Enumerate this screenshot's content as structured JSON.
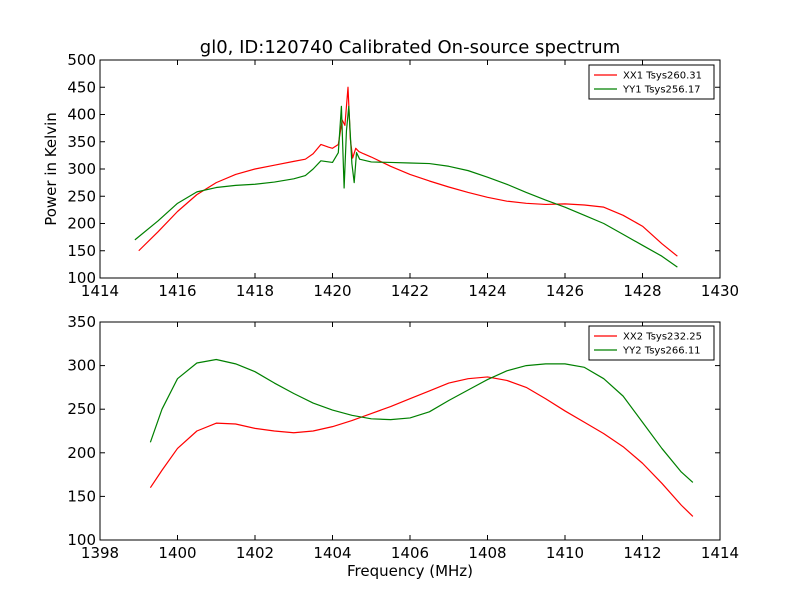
{
  "chart_data": [
    {
      "type": "line",
      "title": "gl0, ID:120740 Calibrated On-source spectrum",
      "xlabel": "",
      "ylabel": "Power in Kelvin",
      "xlim": [
        1414,
        1430
      ],
      "ylim": [
        100,
        500
      ],
      "xticks": [
        "1414",
        "1416",
        "1418",
        "1420",
        "1422",
        "1424",
        "1426",
        "1428",
        "1430"
      ],
      "yticks": [
        "100",
        "150",
        "200",
        "250",
        "300",
        "350",
        "400",
        "450",
        "500"
      ],
      "legend_position": "top-right",
      "grid": false,
      "series": [
        {
          "name": "XX1 Tsys260.31",
          "color": "#ff0000",
          "x": [
            1415.0,
            1415.5,
            1416.0,
            1416.5,
            1417.0,
            1417.5,
            1418.0,
            1418.5,
            1419.0,
            1419.3,
            1419.5,
            1419.7,
            1419.9,
            1420.0,
            1420.15,
            1420.25,
            1420.32,
            1420.4,
            1420.46,
            1420.52,
            1420.6,
            1420.68,
            1420.8,
            1421.0,
            1421.5,
            1422.0,
            1422.5,
            1423.0,
            1423.5,
            1424.0,
            1424.5,
            1425.0,
            1425.5,
            1426.0,
            1426.5,
            1427.0,
            1427.5,
            1428.0,
            1428.5,
            1428.9
          ],
          "y": [
            150,
            185,
            222,
            253,
            275,
            290,
            300,
            307,
            314,
            318,
            328,
            345,
            340,
            338,
            345,
            390,
            380,
            450,
            355,
            320,
            338,
            332,
            328,
            322,
            305,
            290,
            278,
            267,
            257,
            248,
            241,
            237,
            235,
            236,
            234,
            230,
            215,
            195,
            163,
            140
          ]
        },
        {
          "name": "YY1 Tsys256.17",
          "color": "#008000",
          "x": [
            1414.9,
            1415.5,
            1416.0,
            1416.5,
            1417.0,
            1417.5,
            1418.0,
            1418.5,
            1419.0,
            1419.3,
            1419.5,
            1419.7,
            1420.0,
            1420.15,
            1420.23,
            1420.3,
            1420.36,
            1420.42,
            1420.5,
            1420.56,
            1420.62,
            1420.7,
            1421.0,
            1421.5,
            1422.0,
            1422.5,
            1423.0,
            1423.5,
            1424.0,
            1424.5,
            1425.0,
            1425.5,
            1426.0,
            1426.5,
            1427.0,
            1427.5,
            1428.0,
            1428.5,
            1428.9
          ],
          "y": [
            170,
            205,
            237,
            258,
            266,
            270,
            272,
            276,
            282,
            288,
            300,
            315,
            312,
            330,
            415,
            265,
            370,
            415,
            310,
            275,
            330,
            318,
            313,
            312,
            311,
            310,
            305,
            297,
            285,
            272,
            257,
            243,
            230,
            215,
            200,
            180,
            160,
            140,
            120
          ]
        }
      ]
    },
    {
      "type": "line",
      "title": "",
      "xlabel": "Frequency (MHz)",
      "ylabel": "",
      "xlim": [
        1398,
        1414
      ],
      "ylim": [
        100,
        350
      ],
      "xticks": [
        "1398",
        "1400",
        "1402",
        "1404",
        "1406",
        "1408",
        "1410",
        "1412",
        "1414"
      ],
      "yticks": [
        "100",
        "150",
        "200",
        "250",
        "300",
        "350"
      ],
      "legend_position": "top-right",
      "grid": false,
      "series": [
        {
          "name": "XX2 Tsys232.25",
          "color": "#ff0000",
          "x": [
            1399.3,
            1399.6,
            1400.0,
            1400.5,
            1401.0,
            1401.5,
            1402.0,
            1402.5,
            1403.0,
            1403.5,
            1404.0,
            1404.5,
            1405.0,
            1405.5,
            1406.0,
            1406.5,
            1407.0,
            1407.5,
            1408.0,
            1408.5,
            1409.0,
            1409.5,
            1410.0,
            1410.5,
            1411.0,
            1411.5,
            1412.0,
            1412.5,
            1413.0,
            1413.3
          ],
          "y": [
            160,
            180,
            205,
            225,
            234,
            233,
            228,
            225,
            223,
            225,
            230,
            237,
            245,
            253,
            262,
            271,
            280,
            285,
            287,
            283,
            275,
            262,
            248,
            235,
            222,
            207,
            188,
            165,
            140,
            127
          ]
        },
        {
          "name": "YY2 Tsys266.11",
          "color": "#008000",
          "x": [
            1399.3,
            1399.6,
            1400.0,
            1400.5,
            1401.0,
            1401.5,
            1402.0,
            1402.5,
            1403.0,
            1403.5,
            1404.0,
            1404.5,
            1405.0,
            1405.5,
            1406.0,
            1406.5,
            1407.0,
            1407.5,
            1408.0,
            1408.5,
            1409.0,
            1409.5,
            1410.0,
            1410.5,
            1411.0,
            1411.5,
            1412.0,
            1412.5,
            1413.0,
            1413.3
          ],
          "y": [
            212,
            250,
            285,
            303,
            307,
            302,
            293,
            280,
            268,
            257,
            249,
            243,
            239,
            238,
            240,
            247,
            260,
            272,
            284,
            294,
            300,
            302,
            302,
            298,
            285,
            265,
            235,
            205,
            178,
            166
          ]
        }
      ]
    }
  ]
}
